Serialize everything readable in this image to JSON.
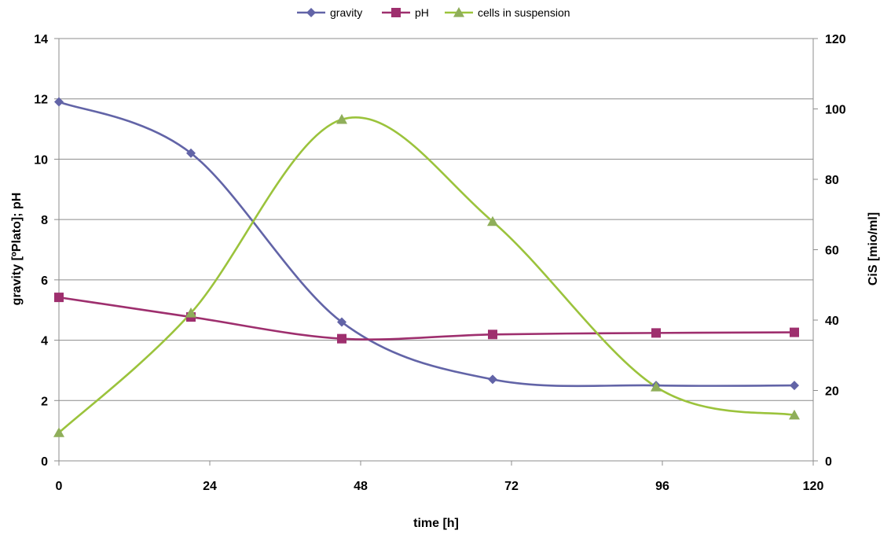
{
  "chart_data": {
    "type": "line",
    "title": "",
    "xlabel": "time [h]",
    "ylabel": "gravity [ºPlato]; pH",
    "y2label": "CiS [mio/ml]",
    "xlim": [
      0,
      120
    ],
    "ylim": [
      0,
      14
    ],
    "y2lim": [
      0,
      120
    ],
    "xticks": [
      "0",
      "24",
      "48",
      "72",
      "96",
      "120"
    ],
    "yticks": [
      "0",
      "2",
      "4",
      "6",
      "8",
      "10",
      "12",
      "14"
    ],
    "y2ticks": [
      "0",
      "20",
      "40",
      "60",
      "80",
      "100",
      "120"
    ],
    "grid": "horizontal",
    "legend_position": "top-center",
    "series": [
      {
        "name": "gravity",
        "axis": "left",
        "color": "#6264A7",
        "marker": "diamond",
        "x": [
          0,
          21,
          45,
          69,
          95,
          117
        ],
        "y": [
          11.9,
          10.2,
          4.6,
          2.7,
          2.5,
          2.5
        ]
      },
      {
        "name": "pH",
        "axis": "left",
        "color": "#9E2F6E",
        "marker": "square",
        "x": [
          0,
          21,
          45,
          69,
          95,
          117
        ],
        "y": [
          5.42,
          4.77,
          4.05,
          4.19,
          4.24,
          4.26
        ]
      },
      {
        "name": "cells in suspension",
        "axis": "right",
        "color": "#9BC33C",
        "marker_color": "#8FAE5A",
        "marker": "triangle",
        "x": [
          0,
          21,
          45,
          69,
          95,
          117
        ],
        "y": [
          8,
          42,
          97,
          68,
          21,
          13
        ]
      }
    ]
  }
}
